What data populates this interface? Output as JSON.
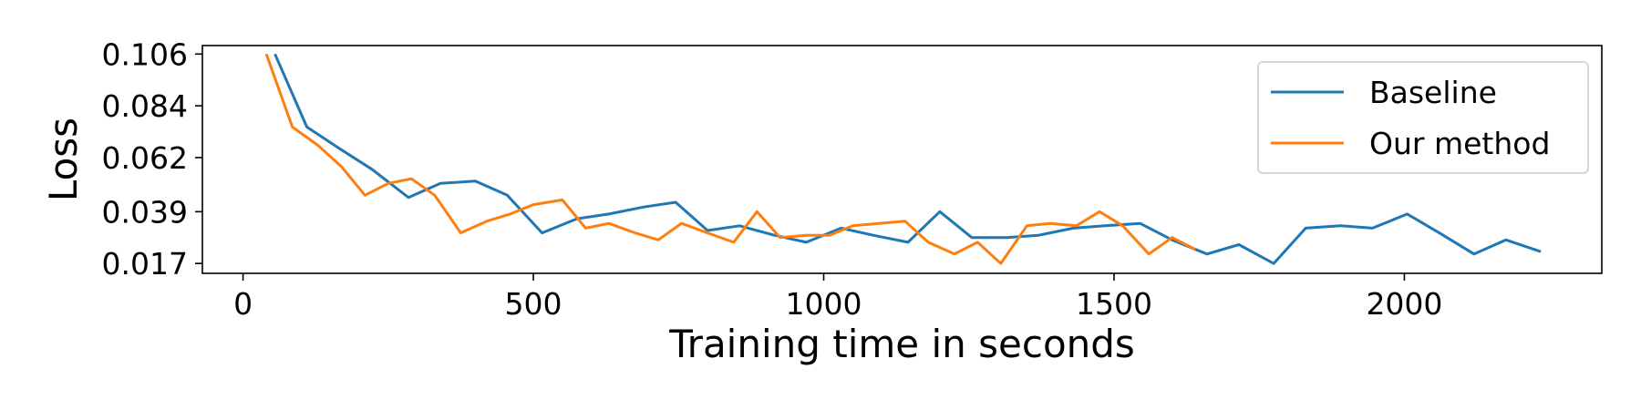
{
  "chart_data": {
    "type": "line",
    "title": "",
    "xlabel": "Training time in seconds",
    "ylabel": "Loss",
    "xlim": [
      -70,
      2340
    ],
    "ylim": [
      0.0128,
      0.1096
    ],
    "xticks": [
      0,
      500,
      1000,
      1500,
      2000
    ],
    "xtick_labels": [
      "0",
      "500",
      "1000",
      "1500",
      "2000"
    ],
    "yticks": [
      0.017,
      0.039,
      0.062,
      0.084,
      0.106
    ],
    "ytick_labels": [
      "0.017",
      "0.039",
      "0.062",
      "0.084",
      "0.106"
    ],
    "grid": false,
    "legend_position": "top-right",
    "series": [
      {
        "name": "Baseline",
        "color": "#1f77b4",
        "x": [
          55,
          110,
          165,
          222,
          285,
          340,
          400,
          455,
          515,
          575,
          630,
          690,
          745,
          800,
          855,
          915,
          970,
          1030,
          1085,
          1145,
          1200,
          1255,
          1315,
          1370,
          1430,
          1485,
          1545,
          1600,
          1660,
          1715,
          1775,
          1830,
          1890,
          1945,
          2005,
          2060,
          2120,
          2175,
          2235
        ],
        "y": [
          0.106,
          0.075,
          0.066,
          0.057,
          0.045,
          0.051,
          0.052,
          0.046,
          0.03,
          0.036,
          0.038,
          0.041,
          0.043,
          0.031,
          0.033,
          0.029,
          0.026,
          0.032,
          0.029,
          0.026,
          0.039,
          0.028,
          0.028,
          0.029,
          0.032,
          0.033,
          0.034,
          0.027,
          0.021,
          0.025,
          0.017,
          0.032,
          0.033,
          0.032,
          0.038,
          0.03,
          0.021,
          0.027,
          0.022
        ]
      },
      {
        "name": "Our method",
        "color": "#ff7f0e",
        "x": [
          40,
          85,
          130,
          170,
          210,
          250,
          290,
          330,
          375,
          420,
          460,
          500,
          550,
          590,
          630,
          675,
          715,
          755,
          800,
          845,
          885,
          925,
          970,
          1010,
          1050,
          1095,
          1140,
          1180,
          1225,
          1265,
          1305,
          1350,
          1390,
          1435,
          1475,
          1515,
          1560,
          1600,
          1640
        ],
        "y": [
          0.106,
          0.075,
          0.067,
          0.058,
          0.046,
          0.051,
          0.053,
          0.046,
          0.03,
          0.035,
          0.038,
          0.042,
          0.044,
          0.032,
          0.034,
          0.03,
          0.027,
          0.034,
          0.03,
          0.026,
          0.039,
          0.028,
          0.029,
          0.029,
          0.033,
          0.034,
          0.035,
          0.026,
          0.021,
          0.026,
          0.017,
          0.033,
          0.034,
          0.033,
          0.039,
          0.033,
          0.021,
          0.028,
          0.023
        ]
      }
    ]
  }
}
